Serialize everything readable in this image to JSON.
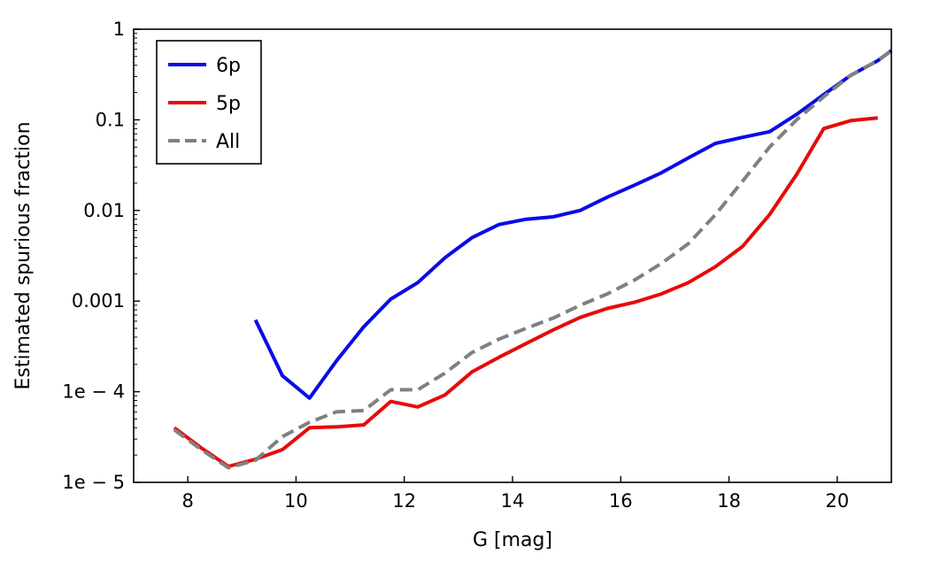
{
  "chart_data": {
    "type": "line",
    "title": "",
    "xlabel": "G [mag]",
    "ylabel": "Estimated spurious fraction",
    "xlim": [
      7,
      21
    ],
    "ylim": [
      1e-05,
      1
    ],
    "yscale": "log",
    "grid": false,
    "legend_position": "top-left",
    "x_ticks": [
      8,
      10,
      12,
      14,
      16,
      18,
      20
    ],
    "x_tick_labels": [
      "8",
      "10",
      "12",
      "14",
      "16",
      "18",
      "20"
    ],
    "y_ticks": [
      1e-05,
      0.0001,
      0.001,
      0.01,
      0.1,
      1
    ],
    "y_tick_labels": [
      "1e − 5",
      "1e − 4",
      "0.001",
      "0.01",
      "0.1",
      "1"
    ],
    "series": [
      {
        "name": "6p",
        "color": "#0a0ae6",
        "style": "solid",
        "points": [
          [
            9.25,
            0.00062
          ],
          [
            9.75,
            0.00015
          ],
          [
            10.25,
            8.5e-05
          ],
          [
            10.75,
            0.00022
          ],
          [
            11.25,
            0.00052
          ],
          [
            11.75,
            0.00105
          ],
          [
            12.25,
            0.0016
          ],
          [
            12.75,
            0.003
          ],
          [
            13.25,
            0.005
          ],
          [
            13.75,
            0.007
          ],
          [
            14.25,
            0.008
          ],
          [
            14.75,
            0.0085
          ],
          [
            15.25,
            0.01
          ],
          [
            15.75,
            0.014
          ],
          [
            16.25,
            0.019
          ],
          [
            16.75,
            0.026
          ],
          [
            17.25,
            0.038
          ],
          [
            17.75,
            0.055
          ],
          [
            18.25,
            0.064
          ],
          [
            18.75,
            0.074
          ],
          [
            19.25,
            0.115
          ],
          [
            19.75,
            0.19
          ],
          [
            20.25,
            0.31
          ],
          [
            20.75,
            0.45
          ],
          [
            21.0,
            0.58
          ]
        ]
      },
      {
        "name": "5p",
        "color": "#e60a0a",
        "style": "solid",
        "points": [
          [
            7.75,
            4e-05
          ],
          [
            8.25,
            2.4e-05
          ],
          [
            8.75,
            1.5e-05
          ],
          [
            9.25,
            1.8e-05
          ],
          [
            9.75,
            2.3e-05
          ],
          [
            10.25,
            4e-05
          ],
          [
            10.75,
            4.1e-05
          ],
          [
            11.25,
            4.3e-05
          ],
          [
            11.75,
            7.8e-05
          ],
          [
            12.25,
            6.8e-05
          ],
          [
            12.75,
            9.2e-05
          ],
          [
            13.25,
            0.000165
          ],
          [
            13.75,
            0.00024
          ],
          [
            14.25,
            0.00034
          ],
          [
            14.75,
            0.00048
          ],
          [
            15.25,
            0.00066
          ],
          [
            15.75,
            0.00083
          ],
          [
            16.25,
            0.00097
          ],
          [
            16.75,
            0.0012
          ],
          [
            17.25,
            0.0016
          ],
          [
            17.75,
            0.0024
          ],
          [
            18.25,
            0.004
          ],
          [
            18.75,
            0.009
          ],
          [
            19.25,
            0.025
          ],
          [
            19.75,
            0.08
          ],
          [
            20.25,
            0.098
          ],
          [
            20.75,
            0.105
          ]
        ]
      },
      {
        "name": "All",
        "color": "#808080",
        "style": "dashed",
        "points": [
          [
            7.75,
            3.8e-05
          ],
          [
            8.25,
            2.3e-05
          ],
          [
            8.75,
            1.45e-05
          ],
          [
            9.25,
            1.75e-05
          ],
          [
            9.75,
            3.2e-05
          ],
          [
            10.25,
            4.6e-05
          ],
          [
            10.75,
            6e-05
          ],
          [
            11.25,
            6.2e-05
          ],
          [
            11.75,
            0.000105
          ],
          [
            12.25,
            0.000105
          ],
          [
            12.75,
            0.00016
          ],
          [
            13.25,
            0.00027
          ],
          [
            13.75,
            0.00038
          ],
          [
            14.25,
            0.0005
          ],
          [
            14.75,
            0.00065
          ],
          [
            15.25,
            0.0009
          ],
          [
            15.75,
            0.0012
          ],
          [
            16.25,
            0.0017
          ],
          [
            16.75,
            0.0026
          ],
          [
            17.25,
            0.0043
          ],
          [
            17.75,
            0.009
          ],
          [
            18.25,
            0.021
          ],
          [
            18.75,
            0.05
          ],
          [
            19.25,
            0.1
          ],
          [
            19.75,
            0.18
          ],
          [
            20.25,
            0.31
          ],
          [
            20.75,
            0.45
          ],
          [
            21.0,
            0.58
          ]
        ]
      }
    ]
  }
}
